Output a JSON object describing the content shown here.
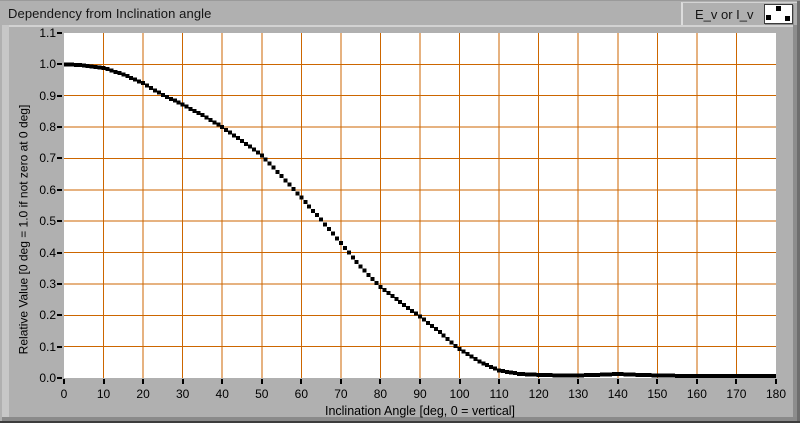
{
  "window": {
    "title": "Dependency from Inclination angle"
  },
  "legend": {
    "label": "E_v or I_v",
    "marker_box_icon": "scatter-markers-preview"
  },
  "axes": {
    "y_title": "Relative Value [0 deg = 1.0 if not zero at 0 deg]",
    "x_title": "Inclination Angle [deg, 0 = vertical]"
  },
  "colors": {
    "window_background": "#b0b0b0",
    "plot_background": "#ffffff",
    "grid": "#cc6600",
    "series": "#000000",
    "text": "#141414"
  },
  "chart_data": {
    "type": "scatter",
    "title": "Dependency from Inclination angle",
    "xlabel": "Inclination Angle [deg, 0 = vertical]",
    "ylabel": "Relative Value [0 deg = 1.0 if not zero at 0 deg]",
    "xlim": [
      0,
      180
    ],
    "ylim": [
      0,
      1.1
    ],
    "x_tick_step": 10,
    "y_tick_step": 0.1,
    "x_ticks": [
      "0",
      "10",
      "20",
      "30",
      "40",
      "50",
      "60",
      "70",
      "80",
      "90",
      "100",
      "110",
      "120",
      "130",
      "140",
      "150",
      "160",
      "170",
      "180"
    ],
    "y_ticks": [
      "1.1",
      "1.0",
      "0.9",
      "0.8",
      "0.7",
      "0.6",
      "0.5",
      "0.4",
      "0.3",
      "0.2",
      "0.1",
      "0.0"
    ],
    "grid": true,
    "grid_color": "#cc6600",
    "legend_position": "top-right",
    "series": [
      {
        "name": "E_v or I_v",
        "marker": "square",
        "color": "#000000",
        "x": [
          0,
          5,
          10,
          15,
          20,
          25,
          30,
          35,
          40,
          45,
          50,
          55,
          60,
          65,
          70,
          75,
          80,
          85,
          90,
          95,
          100,
          105,
          110,
          115,
          120,
          125,
          130,
          135,
          140,
          145,
          150,
          155,
          160,
          165,
          170,
          175,
          180
        ],
        "values": [
          1.0,
          0.997,
          0.989,
          0.968,
          0.94,
          0.902,
          0.872,
          0.838,
          0.8,
          0.756,
          0.71,
          0.644,
          0.575,
          0.505,
          0.43,
          0.355,
          0.29,
          0.242,
          0.196,
          0.146,
          0.092,
          0.052,
          0.024,
          0.013,
          0.01,
          0.008,
          0.008,
          0.01,
          0.013,
          0.01,
          0.008,
          0.007,
          0.007,
          0.007,
          0.007,
          0.007,
          0.007
        ],
        "point_spacing_deg": 1
      }
    ]
  }
}
